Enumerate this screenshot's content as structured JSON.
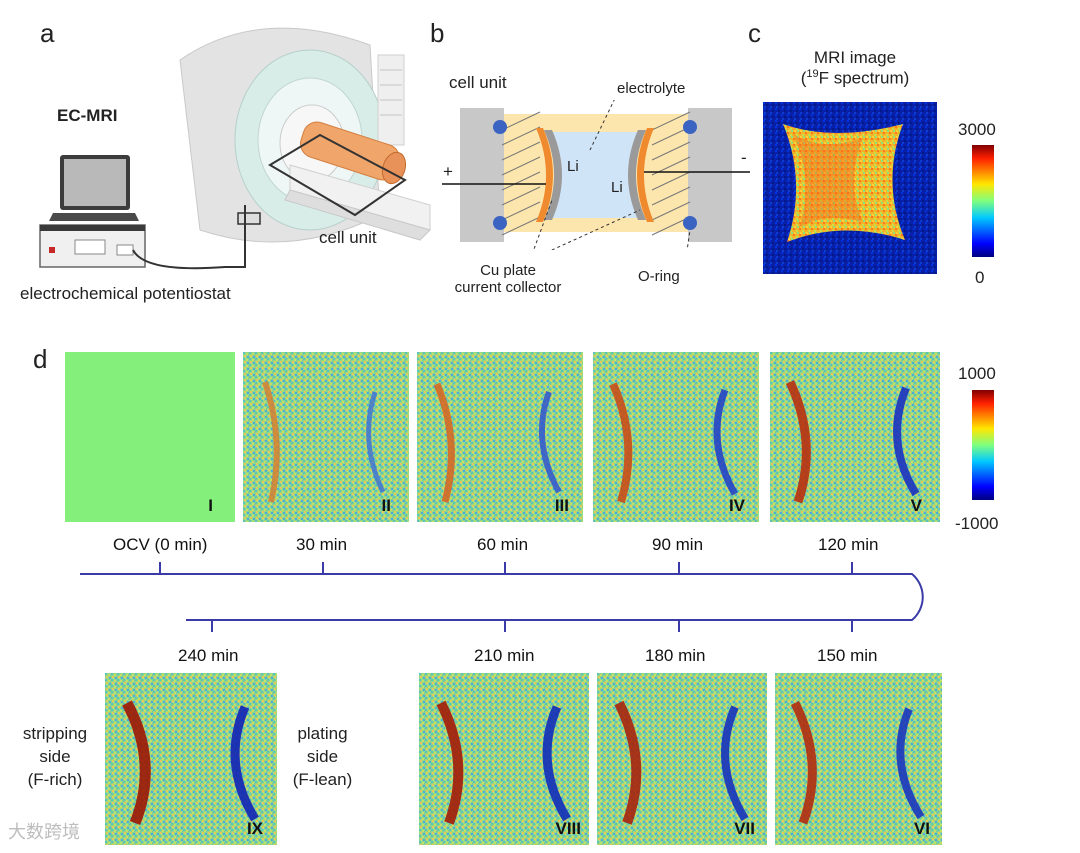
{
  "panels": {
    "a": {
      "letter": "a",
      "title": "EC-MRI",
      "cell_unit_label": "cell unit",
      "device_label": "electrochemical potentiostat"
    },
    "b": {
      "letter": "b",
      "cell_unit_label": "cell unit",
      "electrolyte_label": "electrolyte",
      "li_left": "Li",
      "li_right": "Li",
      "plus": "+",
      "minus": "-",
      "cu_line1": "Cu plate",
      "cu_line2": "current collector",
      "oring_label": "O-ring"
    },
    "c": {
      "letter": "c",
      "title_line1": "MRI image",
      "title_sup": "19",
      "title_line2_rest": "F spectrum)",
      "title_line2_open": "(",
      "colorbar_max": "3000",
      "colorbar_min": "0"
    },
    "d": {
      "letter": "d",
      "colorbar_max": "1000",
      "colorbar_min": "-1000",
      "top_frames": [
        {
          "numeral": "I",
          "time": "OCV (0 min)"
        },
        {
          "numeral": "II",
          "time": "30 min"
        },
        {
          "numeral": "III",
          "time": "60 min"
        },
        {
          "numeral": "IV",
          "time": "90 min"
        },
        {
          "numeral": "V",
          "time": "120 min"
        }
      ],
      "bottom_frames": [
        {
          "numeral": "IX",
          "time": "240 min"
        },
        {
          "numeral": "VIII",
          "time": "210 min"
        },
        {
          "numeral": "VII",
          "time": "180 min"
        },
        {
          "numeral": "VI",
          "time": "150 min"
        }
      ],
      "stripping_l1": "stripping",
      "stripping_l2": "side",
      "stripping_l3": "(F-rich)",
      "plating_l1": "plating",
      "plating_l2": "side",
      "plating_l3": "(F-lean)"
    }
  },
  "colors": {
    "timeline": "#3a3aa8",
    "ocv_green": "#84ef7a"
  },
  "watermark": "大数跨境"
}
